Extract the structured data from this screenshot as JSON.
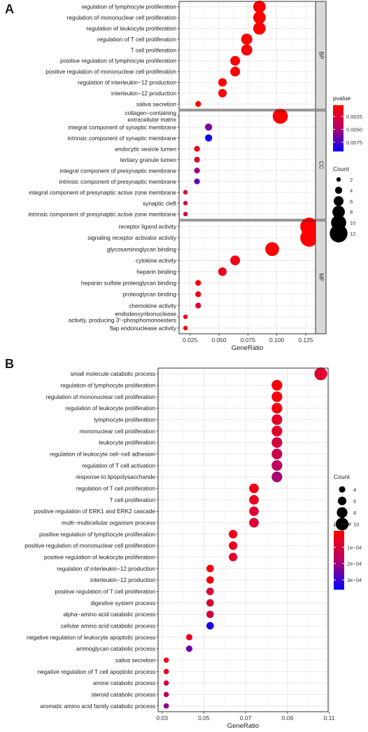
{
  "panels": [
    "A",
    "B"
  ],
  "chart_data": [
    {
      "type": "scatter",
      "panel": "A",
      "xlabel": "GeneRatio",
      "x_ticks": [
        "0.025",
        "0.050",
        "0.075",
        "0.100",
        "0.125"
      ],
      "x_tick_values": [
        0.025,
        0.05,
        0.075,
        0.1,
        0.125
      ],
      "xlim": [
        0.0155,
        0.1335
      ],
      "grid": true,
      "color_scale": {
        "title": "pvalue",
        "low_color": "#ff0000",
        "high_color": "#0000ff",
        "range": [
          0.0003,
          0.0093
        ],
        "ticks": [
          "0.0025",
          "0.0050",
          "0.0075"
        ],
        "tick_values": [
          0.0025,
          0.005,
          0.0075
        ]
      },
      "size_scale": {
        "title": "Count",
        "values": [
          2,
          4,
          6,
          8,
          10,
          12
        ],
        "labels": [
          "2",
          "4",
          "6",
          "8",
          "10",
          "12"
        ]
      },
      "legend": "right",
      "facets": [
        {
          "name": "BP",
          "categories": [
            {
              "label": [
                "regulation of lymphocyte proliferation"
              ],
              "x": 0.085,
              "count": 8,
              "pvalue": 0.0003
            },
            {
              "label": [
                "regulation of mononuclear cell proliferation"
              ],
              "x": 0.085,
              "count": 8,
              "pvalue": 0.0003
            },
            {
              "label": [
                "regulation of leukocyte proliferation"
              ],
              "x": 0.085,
              "count": 8,
              "pvalue": 0.0004
            },
            {
              "label": [
                "regulation of T cell proliferation"
              ],
              "x": 0.074,
              "count": 7,
              "pvalue": 0.0004
            },
            {
              "label": [
                "T cell proliferation"
              ],
              "x": 0.074,
              "count": 7,
              "pvalue": 0.0005
            },
            {
              "label": [
                "positive regulation of lymphocyte proliferation"
              ],
              "x": 0.064,
              "count": 6,
              "pvalue": 0.0006
            },
            {
              "label": [
                "positive regulation of mononuclear cell proliferation"
              ],
              "x": 0.064,
              "count": 6,
              "pvalue": 0.0006
            },
            {
              "label": [
                "regulation of interleukin−12 production"
              ],
              "x": 0.053,
              "count": 5,
              "pvalue": 0.0004
            },
            {
              "label": [
                "interleukin−12 production"
              ],
              "x": 0.053,
              "count": 5,
              "pvalue": 0.0004
            },
            {
              "label": [
                "saliva secretion"
              ],
              "x": 0.032,
              "count": 3,
              "pvalue": 0.0005
            }
          ]
        },
        {
          "name": "CC",
          "categories": [
            {
              "label": [
                "collagen−containing",
                "extracellular matrix"
              ],
              "x": 0.103,
              "count": 10,
              "pvalue": 0.0004
            },
            {
              "label": [
                "integral component of synaptic membrane"
              ],
              "x": 0.041,
              "count": 4,
              "pvalue": 0.0062
            },
            {
              "label": [
                "intrinsic component of synaptic membrane"
              ],
              "x": 0.041,
              "count": 4,
              "pvalue": 0.0088
            },
            {
              "label": [
                "endocytic vesicle lumen"
              ],
              "x": 0.031,
              "count": 3,
              "pvalue": 0.0012
            },
            {
              "label": [
                "tertiary granule lumen"
              ],
              "x": 0.031,
              "count": 3,
              "pvalue": 0.0022
            },
            {
              "label": [
                "integral component of presynaptic membrane"
              ],
              "x": 0.031,
              "count": 3,
              "pvalue": 0.0055
            },
            {
              "label": [
                "intrinsic component of presynaptic membrane"
              ],
              "x": 0.031,
              "count": 3,
              "pvalue": 0.0068
            },
            {
              "label": [
                "integral component of presynaptic active zone membrane"
              ],
              "x": 0.021,
              "count": 2,
              "pvalue": 0.0022
            },
            {
              "label": [
                "synaptic cleft"
              ],
              "x": 0.021,
              "count": 2,
              "pvalue": 0.003
            },
            {
              "label": [
                "intrinsic component of presynaptic active zone membrane"
              ],
              "x": 0.021,
              "count": 2,
              "pvalue": 0.003
            }
          ]
        },
        {
          "name": "MF",
          "categories": [
            {
              "label": [
                "receptor ligand activity"
              ],
              "x": 0.128,
              "count": 12,
              "pvalue": 0.0003
            },
            {
              "label": [
                "signaling receptor activator activity"
              ],
              "x": 0.128,
              "count": 12,
              "pvalue": 0.0003
            },
            {
              "label": [
                "glycosaminoglycan binding"
              ],
              "x": 0.096,
              "count": 9,
              "pvalue": 0.0003
            },
            {
              "label": [
                "cytokine activity"
              ],
              "x": 0.064,
              "count": 6,
              "pvalue": 0.0012
            },
            {
              "label": [
                "heparin binding"
              ],
              "x": 0.053,
              "count": 5,
              "pvalue": 0.0012
            },
            {
              "label": [
                "heparan sulfate proteoglycan binding"
              ],
              "x": 0.032,
              "count": 3,
              "pvalue": 0.0008
            },
            {
              "label": [
                "proteoglycan binding"
              ],
              "x": 0.032,
              "count": 3,
              "pvalue": 0.0012
            },
            {
              "label": [
                "chemokine activity"
              ],
              "x": 0.032,
              "count": 3,
              "pvalue": 0.0022
            },
            {
              "label": [
                "endodeoxyribonuclease",
                "activity, producing 3′−phosphomonoesters"
              ],
              "x": 0.021,
              "count": 2,
              "pvalue": 0.0012
            },
            {
              "label": [
                "flap endonuclease activity"
              ],
              "x": 0.021,
              "count": 2,
              "pvalue": 0.0012
            }
          ]
        }
      ]
    },
    {
      "type": "scatter",
      "panel": "B",
      "xlabel": "GeneRatio",
      "x_ticks": [
        "0.03",
        "0.05",
        "0.07",
        "0.09",
        "0.11"
      ],
      "x_tick_values": [
        0.03,
        0.05,
        0.07,
        0.09,
        0.11
      ],
      "xlim": [
        0.0281,
        0.1095
      ],
      "grid": true,
      "color_scale": {
        "title": "pvalue",
        "low_color": "#ff0000",
        "high_color": "#0000ff",
        "range": [
          0.0,
          0.00036
        ],
        "ticks": [
          "1e−04",
          "2e−04",
          "3e−04"
        ],
        "tick_values": [
          0.0001,
          0.0002,
          0.0003
        ]
      },
      "size_scale": {
        "title": "Count",
        "values": [
          4,
          6,
          8,
          10
        ],
        "labels": [
          "4",
          "6",
          "8",
          "10"
        ]
      },
      "legend": "right",
      "facets": [
        {
          "name": "",
          "categories": [
            {
              "label": [
                "small molecule catabolic process"
              ],
              "x": 0.106,
              "count": 10,
              "pvalue": 8e-05
            },
            {
              "label": [
                "regulation of lymphocyte proliferation"
              ],
              "x": 0.085,
              "count": 8,
              "pvalue": 2e-05
            },
            {
              "label": [
                "regulation of mononuclear cell proliferation"
              ],
              "x": 0.085,
              "count": 8,
              "pvalue": 2e-05
            },
            {
              "label": [
                "regulation of leukocyte proliferation"
              ],
              "x": 0.085,
              "count": 8,
              "pvalue": 3e-05
            },
            {
              "label": [
                "lymphocyte proliferation"
              ],
              "x": 0.085,
              "count": 8,
              "pvalue": 7e-05
            },
            {
              "label": [
                "mononuclear cell proliferation"
              ],
              "x": 0.085,
              "count": 8,
              "pvalue": 7e-05
            },
            {
              "label": [
                "leukocyte proliferation"
              ],
              "x": 0.085,
              "count": 8,
              "pvalue": 0.00011
            },
            {
              "label": [
                "regulation of leukocyte cell−cell adhesion"
              ],
              "x": 0.085,
              "count": 8,
              "pvalue": 0.00013
            },
            {
              "label": [
                "regulation of T cell activation"
              ],
              "x": 0.085,
              "count": 8,
              "pvalue": 0.00016
            },
            {
              "label": [
                "response to lipopolysaccharide"
              ],
              "x": 0.085,
              "count": 8,
              "pvalue": 0.00019
            },
            {
              "label": [
                "regulation of T cell proliferation"
              ],
              "x": 0.074,
              "count": 7,
              "pvalue": 4e-05
            },
            {
              "label": [
                "T cell proliferation"
              ],
              "x": 0.074,
              "count": 7,
              "pvalue": 5e-05
            },
            {
              "label": [
                "positive regulation of ERK1 and ERK2 cascade"
              ],
              "x": 0.074,
              "count": 7,
              "pvalue": 8e-05
            },
            {
              "label": [
                "multi−multicellular organism process"
              ],
              "x": 0.074,
              "count": 7,
              "pvalue": 9e-05
            },
            {
              "label": [
                "positive regulation of lymphocyte proliferation"
              ],
              "x": 0.064,
              "count": 6,
              "pvalue": 5e-05
            },
            {
              "label": [
                "positive regulation of mononuclear cell proliferation"
              ],
              "x": 0.064,
              "count": 6,
              "pvalue": 5e-05
            },
            {
              "label": [
                "positive regulation of leukocyte proliferation"
              ],
              "x": 0.064,
              "count": 6,
              "pvalue": 7e-05
            },
            {
              "label": [
                "regulation of interleukin−12 production"
              ],
              "x": 0.053,
              "count": 5,
              "pvalue": 2e-05
            },
            {
              "label": [
                "interleukin−12 production"
              ],
              "x": 0.053,
              "count": 5,
              "pvalue": 2e-05
            },
            {
              "label": [
                "positive regulation of T cell proliferation"
              ],
              "x": 0.053,
              "count": 5,
              "pvalue": 9e-05
            },
            {
              "label": [
                "digestive system process"
              ],
              "x": 0.053,
              "count": 5,
              "pvalue": 9e-05
            },
            {
              "label": [
                "alpha−amino acid catabolic process"
              ],
              "x": 0.053,
              "count": 5,
              "pvalue": 0.00011
            },
            {
              "label": [
                "cellular amino acid catabolic process"
              ],
              "x": 0.053,
              "count": 5,
              "pvalue": 0.00033
            },
            {
              "label": [
                "negative regulation of leukocyte apoptotic process"
              ],
              "x": 0.043,
              "count": 4,
              "pvalue": 4e-05
            },
            {
              "label": [
                "aminoglycan catabolic process"
              ],
              "x": 0.043,
              "count": 4,
              "pvalue": 0.00025
            },
            {
              "label": [
                "saliva secretion"
              ],
              "x": 0.032,
              "count": 3,
              "pvalue": 4e-05
            },
            {
              "label": [
                "negative regulation of T cell apoptotic process"
              ],
              "x": 0.032,
              "count": 3,
              "pvalue": 5e-05
            },
            {
              "label": [
                "amine catabolic process"
              ],
              "x": 0.032,
              "count": 3,
              "pvalue": 0.00011
            },
            {
              "label": [
                "steroid catabolic process"
              ],
              "x": 0.032,
              "count": 3,
              "pvalue": 0.00015
            },
            {
              "label": [
                "aromatic amino acid family catabolic process"
              ],
              "x": 0.032,
              "count": 3,
              "pvalue": 0.00022
            }
          ]
        }
      ]
    }
  ]
}
